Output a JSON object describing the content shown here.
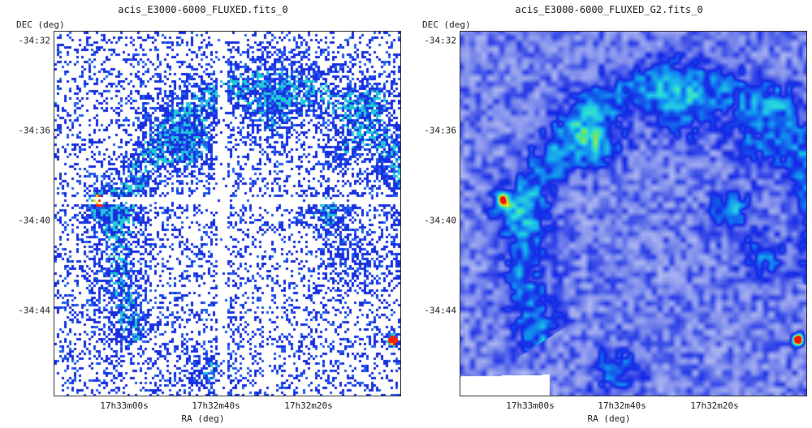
{
  "panels": [
    {
      "title": "acis_E3000-6000_FLUXED.fits_0",
      "ylabel": "DEC (deg)",
      "xlabel": "RA (deg)",
      "dec_ticks": [
        "-34:32",
        "-34:36",
        "-34:40",
        "-34:44"
      ],
      "ra_ticks": [
        "17h33m00s",
        "17h32m40s",
        "17h32m20s"
      ],
      "colormap": "raw-counts-blue-white"
    },
    {
      "title": "acis_E3000-6000_FLUXED_G2.fits_0",
      "ylabel": "DEC (deg)",
      "xlabel": "RA (deg)",
      "dec_ticks": [
        "-34:32",
        "-34:36",
        "-34:40",
        "-34:44"
      ],
      "ra_ticks": [
        "17h33m00s",
        "17h32m40s",
        "17h32m20s"
      ],
      "colormap": "smoothed-blue-cyan-red"
    }
  ],
  "colors": {
    "background": "#ffffff",
    "low": "#1830e0",
    "mid": "#20d0e0",
    "high": "#ff2000"
  }
}
